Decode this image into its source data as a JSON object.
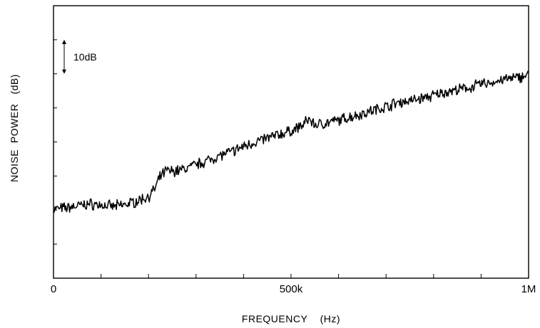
{
  "chart_data": {
    "type": "line",
    "title": "",
    "xlabel": "FREQUENCY    (Hz)",
    "ylabel": "NOISE  POWER   (dB)",
    "x_tick_labels": [
      {
        "value": 0,
        "label": "0"
      },
      {
        "value": 500000,
        "label": "500k"
      },
      {
        "value": 1000000,
        "label": "1M"
      }
    ],
    "x_minor_ticks": [
      100000,
      200000,
      300000,
      400000,
      500000,
      600000,
      700000,
      800000,
      900000
    ],
    "xlim": [
      0,
      1000000
    ],
    "ylim": [
      0,
      80
    ],
    "y_ticks": [
      10,
      20,
      30,
      40,
      50,
      60,
      70
    ],
    "y_tick_labels_shown": false,
    "scale_marker": {
      "label": "10dB",
      "span_db": 10
    },
    "grid": false,
    "series": [
      {
        "x": [
          0,
          25000,
          50000,
          75000,
          100000,
          125000,
          150000,
          175000,
          200000,
          212500,
          225000,
          237500,
          250000,
          275000,
          300000,
          325000,
          350000,
          375000,
          400000,
          425000,
          450000,
          475000,
          500000,
          525000,
          537500,
          550000,
          575000,
          600000,
          625000,
          650000,
          675000,
          700000,
          725000,
          750000,
          775000,
          800000,
          825000,
          850000,
          875000,
          900000,
          925000,
          950000,
          975000,
          1000000
        ],
        "y": [
          20.3,
          20.6,
          21.2,
          21.8,
          21.5,
          21.0,
          21.6,
          22.6,
          24.0,
          26.0,
          29.8,
          31.6,
          31.4,
          32.0,
          33.3,
          34.6,
          36.0,
          37.1,
          38.7,
          40.0,
          41.1,
          42.2,
          43.2,
          44.9,
          46.8,
          45.0,
          45.6,
          46.3,
          47.4,
          48.3,
          49.4,
          50.4,
          51.6,
          52.1,
          52.8,
          53.6,
          54.7,
          55.2,
          55.9,
          57.0,
          57.5,
          58.4,
          58.8,
          59.8
        ]
      }
    ]
  }
}
